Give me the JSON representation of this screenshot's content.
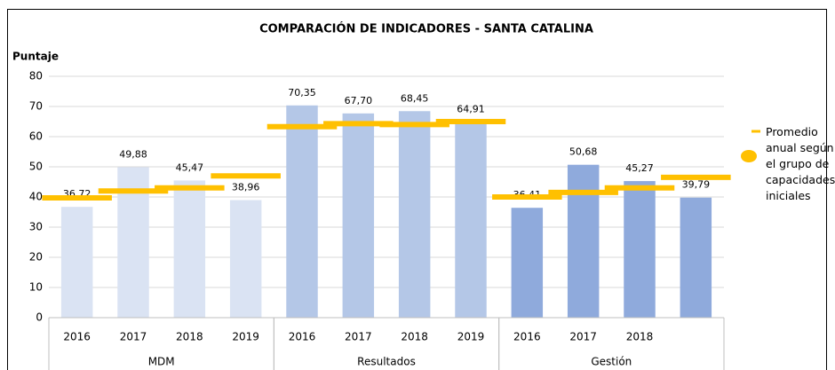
{
  "chart_data": {
    "type": "bar",
    "title": "COMPARACIÓN DE INDICADORES - SANTA CATALINA",
    "y_label": "Puntaje",
    "ylim": [
      0,
      80
    ],
    "yticks": [
      0,
      10,
      20,
      30,
      40,
      50,
      60,
      70,
      80
    ],
    "grid": true,
    "average_series": {
      "name": "Promedio anual según el grupo de capacidades iniciales",
      "color": "#ffc000"
    },
    "legend": "right",
    "groups": [
      {
        "name": "MDM",
        "color": "#dae3f3",
        "categories": [
          "2016",
          "2017",
          "2018",
          "2019"
        ],
        "values": [
          36.72,
          49.88,
          45.47,
          38.96
        ],
        "value_labels": [
          "36,72",
          "49,88",
          "45,47",
          "38,96"
        ],
        "averages": [
          39.7,
          42,
          43,
          47
        ]
      },
      {
        "name": "Resultados",
        "color": "#b4c7e7",
        "categories": [
          "2016",
          "2017",
          "2018",
          "2019"
        ],
        "values": [
          70.35,
          67.7,
          68.45,
          64.91
        ],
        "value_labels": [
          "70,35",
          "67,70",
          "68,45",
          "64,91"
        ],
        "averages": [
          63.3,
          64.3,
          64,
          65
        ]
      },
      {
        "name": "Gestión",
        "color": "#8faadc",
        "categories": [
          "2016",
          "2017",
          "2018",
          null
        ],
        "values": [
          36.41,
          50.68,
          45.27,
          39.79
        ],
        "value_labels": [
          "36,41",
          "50,68",
          "45,27",
          "39,79"
        ],
        "averages": [
          40,
          41.5,
          43,
          46.5
        ]
      }
    ]
  }
}
